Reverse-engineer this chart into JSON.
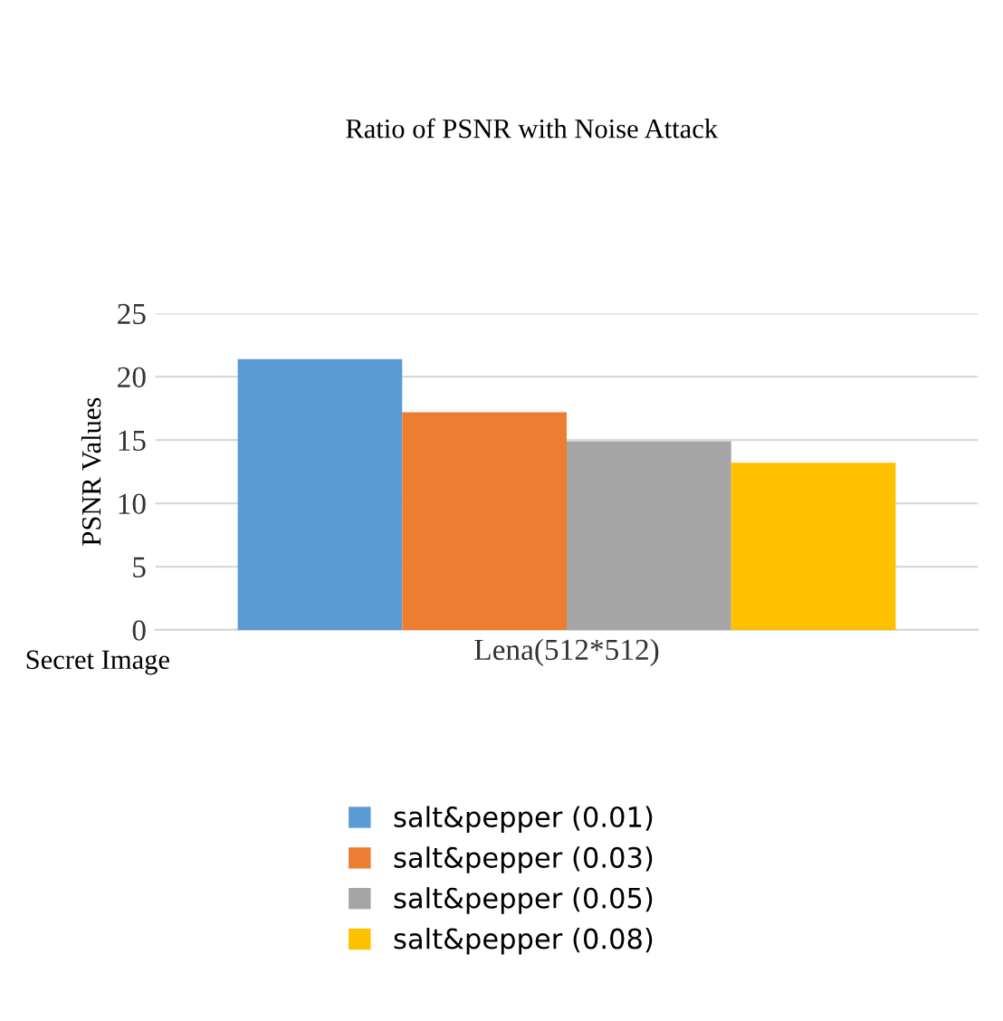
{
  "chart_data": {
    "type": "bar",
    "title": "Ratio of PSNR with Noise Attack",
    "xlabel": "Secret Image",
    "ylabel": "PSNR Values",
    "categories": [
      "Lena(512*512)"
    ],
    "series": [
      {
        "name": "salt&pepper (0.01)",
        "color": "#5b9bd5",
        "values": [
          21.4
        ]
      },
      {
        "name": "salt&pepper (0.03)",
        "color": "#ed7d31",
        "values": [
          17.2
        ]
      },
      {
        "name": "salt&pepper (0.05)",
        "color": "#a5a5a5",
        "values": [
          14.9
        ]
      },
      {
        "name": "salt&pepper (0.08)",
        "color": "#ffc000",
        "values": [
          13.2
        ]
      }
    ],
    "ylim": [
      0,
      25
    ],
    "yticks": [
      0,
      5,
      10,
      15,
      20,
      25
    ],
    "grid": "y",
    "legend": "bottom"
  }
}
